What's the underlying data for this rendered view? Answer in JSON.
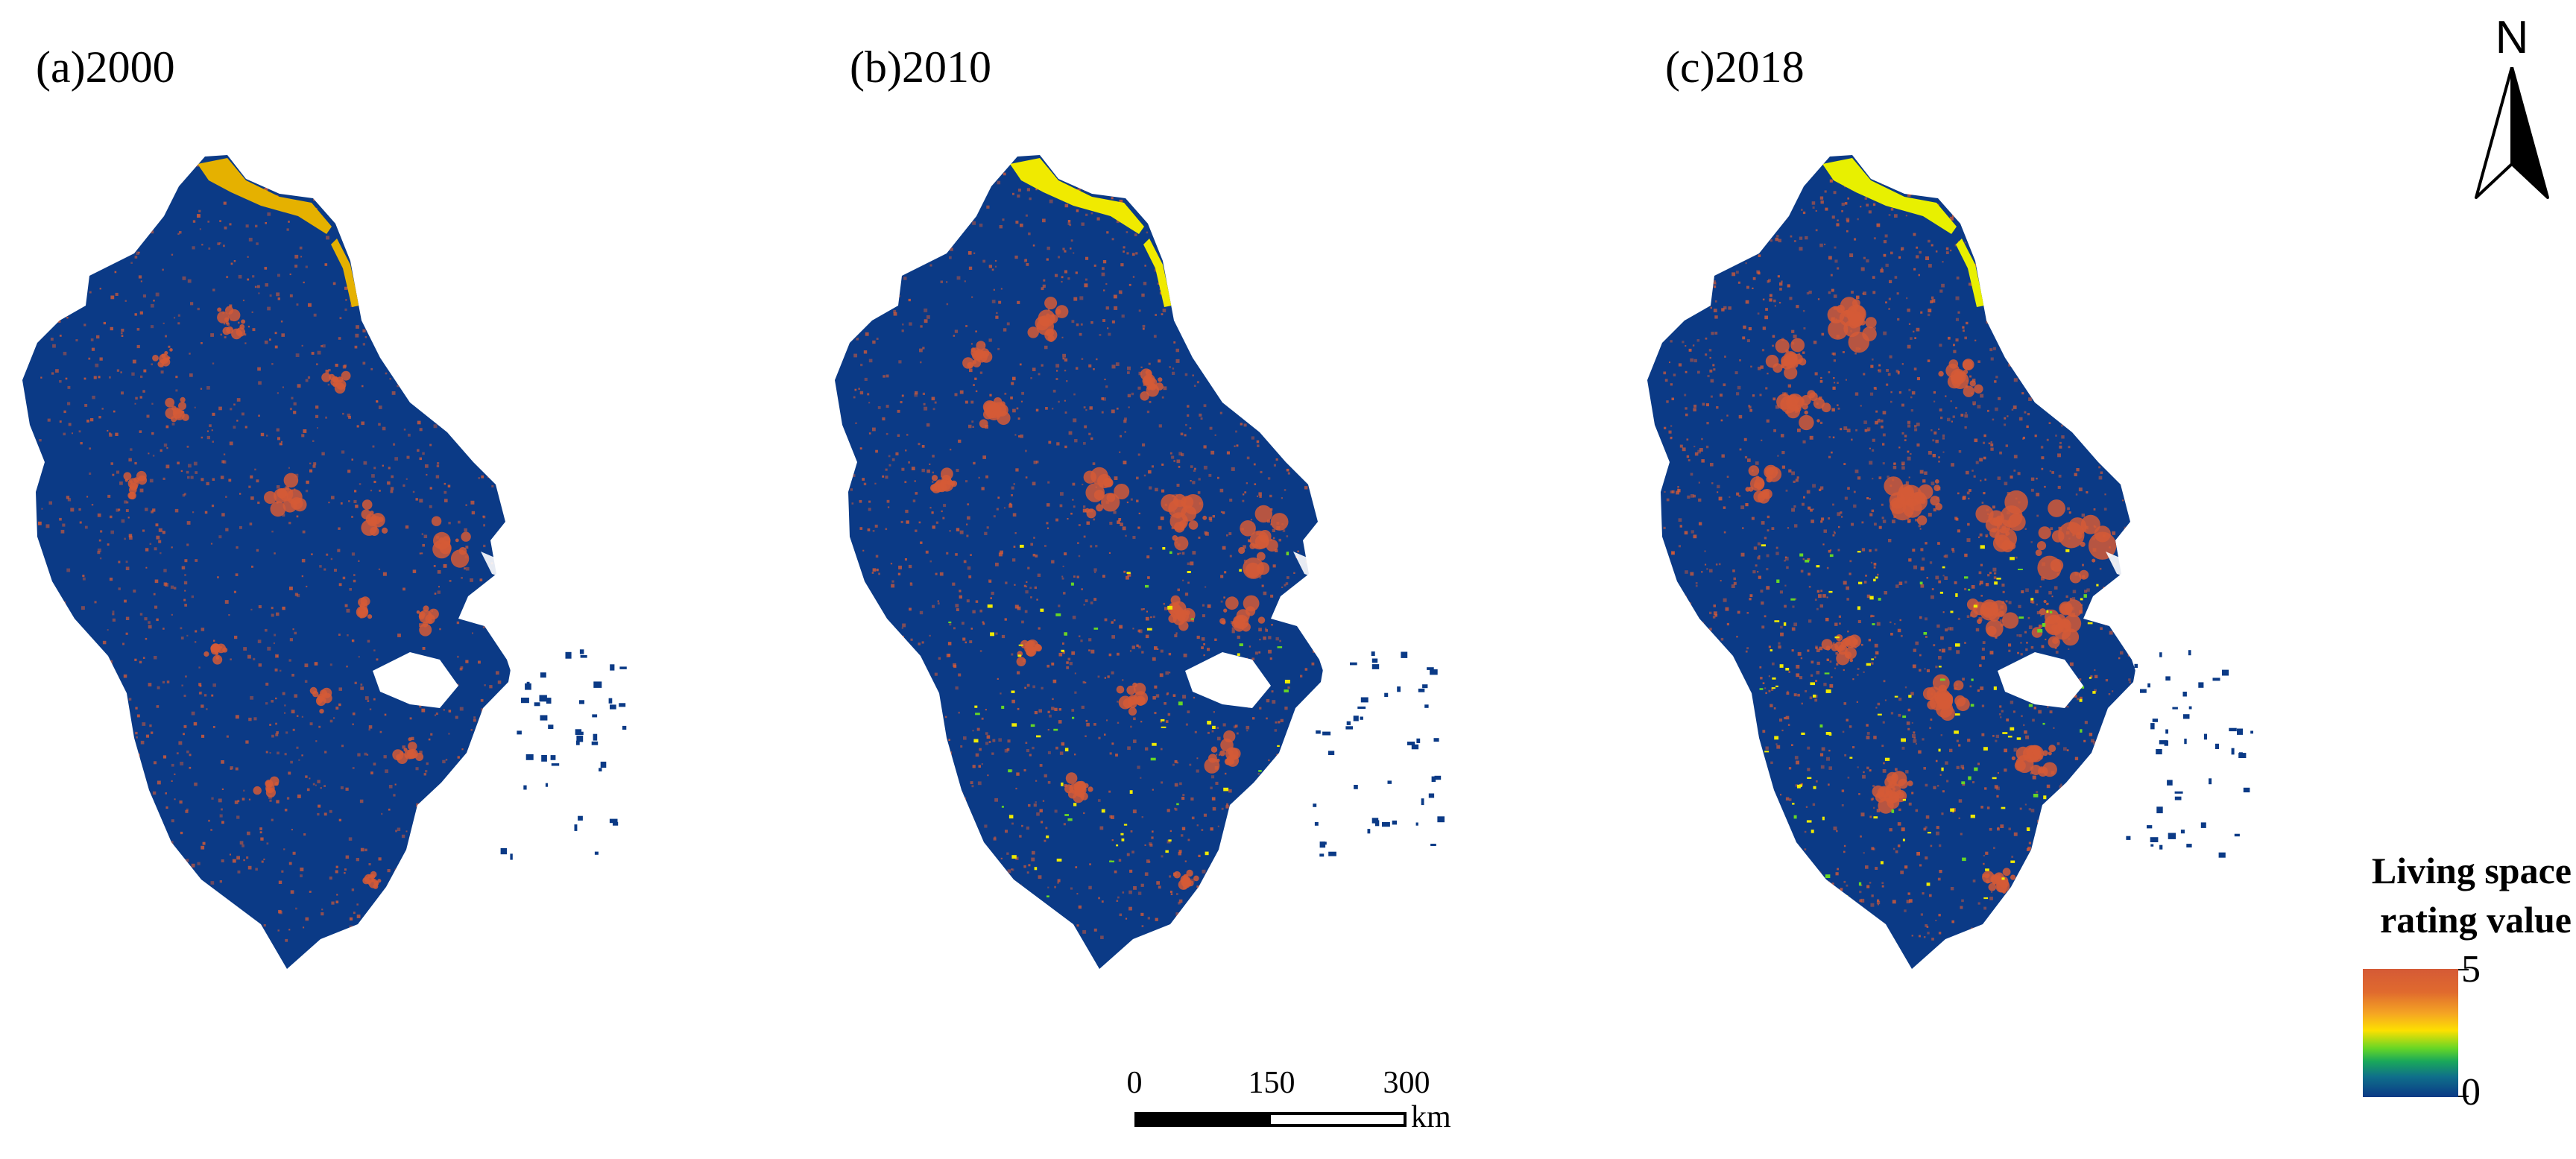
{
  "panels": [
    {
      "label": "(a)2000",
      "urban_level": 0.35,
      "coast_color": "#e5b100"
    },
    {
      "label": "(b)2010",
      "urban_level": 0.6,
      "coast_color": "#f0ea00"
    },
    {
      "label": "(c)2018",
      "urban_level": 0.85,
      "coast_color": "#e8f000"
    }
  ],
  "north_arrow": {
    "letter": "N"
  },
  "legend": {
    "title_line1": "Living space",
    "title_line2": "rating value",
    "max_label": "5",
    "min_label": "0",
    "colors": {
      "high": "#d55a36",
      "mid": "#fde000",
      "low": "#0b3a86"
    }
  },
  "scale_bar": {
    "ticks": [
      "0",
      "150",
      "300"
    ],
    "unit": "km"
  },
  "colors": {
    "background_class": "#0b3a86",
    "urban": "#d55a36",
    "coastal_highlight": "#f0ea00"
  }
}
